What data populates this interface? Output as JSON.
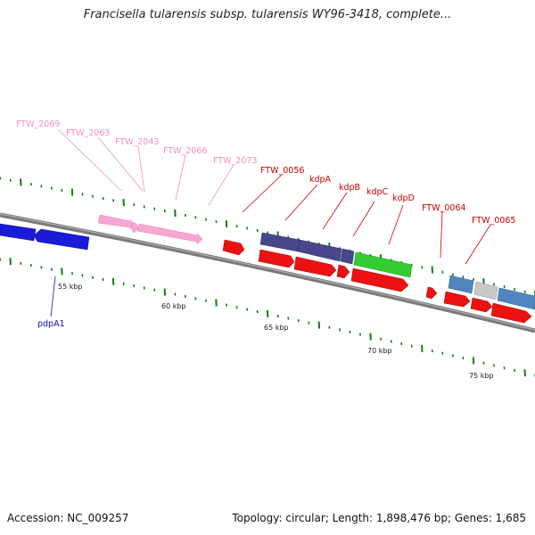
{
  "title": "Francisella tularensis subsp. tularensis WY96-3418, complete...",
  "footer": {
    "accession": "Accession: NC_009257",
    "summary": "Topology: circular; Length: 1,898,476 bp; Genes: 1,685"
  },
  "colors": {
    "backbone": "#7f7f7f",
    "tick": "#1a7a1a",
    "label_dark_red": "#cc0000",
    "label_pink": "#f090c0",
    "label_blue": "#1010b0",
    "gene_red": "#ee1111",
    "gene_pink": "#f7a7d3",
    "gene_blue": "#1a1ad8",
    "gene_purple": "#47478a",
    "gene_green": "#33cc33",
    "gene_steelblue": "#4f86bf",
    "gene_gray": "#c8c8c8"
  },
  "scale_labels": [
    "55 kbp",
    "60 kbp",
    "65 kbp",
    "70 kbp",
    "75 kbp"
  ],
  "gene_labels": [
    {
      "text": "FTW_2069",
      "color": "pink"
    },
    {
      "text": "FTW_2063",
      "color": "pink"
    },
    {
      "text": "FTW_2043",
      "color": "pink"
    },
    {
      "text": "FTW_2066",
      "color": "pink"
    },
    {
      "text": "FTW_2073",
      "color": "pink"
    },
    {
      "text": "FTW_0056",
      "color": "red"
    },
    {
      "text": "kdpA",
      "color": "red"
    },
    {
      "text": "kdpB",
      "color": "red"
    },
    {
      "text": "kdpC",
      "color": "red"
    },
    {
      "text": "kdpD",
      "color": "red"
    },
    {
      "text": "FTW_0064",
      "color": "red"
    },
    {
      "text": "FTW_0065",
      "color": "red"
    },
    {
      "text": "pdpA1",
      "color": "blue"
    }
  ]
}
